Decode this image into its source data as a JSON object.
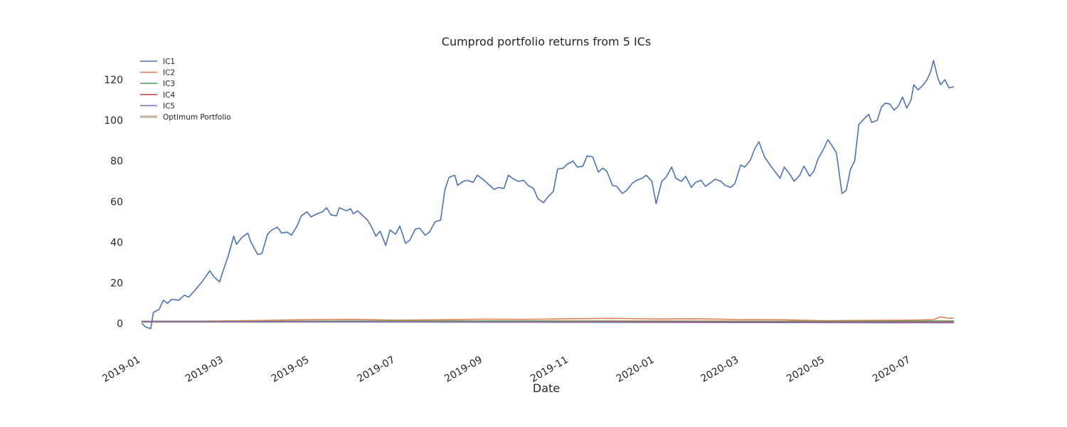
{
  "chart_data": {
    "type": "line",
    "title": "Cumprod portfolio returns from 5 ICs",
    "xlabel": "Date",
    "ylabel": "",
    "x_type": "date",
    "xlim": [
      "2018-12-28",
      "2020-08-03"
    ],
    "ylim": [
      -12,
      134
    ],
    "yticks": [
      0,
      20,
      40,
      60,
      80,
      100,
      120
    ],
    "xticks": [
      "2019-01",
      "2019-03",
      "2019-05",
      "2019-07",
      "2019-09",
      "2019-11",
      "2020-01",
      "2020-03",
      "2020-05",
      "2020-07"
    ],
    "grid": false,
    "legend_position": "top-left",
    "series": [
      {
        "name": "IC1",
        "color": "#4c72b0",
        "points": [
          [
            "2019-01-02",
            0.0
          ],
          [
            "2019-01-04",
            -1.5
          ],
          [
            "2019-01-08",
            -2.5
          ],
          [
            "2019-01-10",
            5.5
          ],
          [
            "2019-01-14",
            7.0
          ],
          [
            "2019-01-17",
            11.5
          ],
          [
            "2019-01-20",
            10.0
          ],
          [
            "2019-01-23",
            12.0
          ],
          [
            "2019-01-28",
            11.5
          ],
          [
            "2019-02-01",
            14.0
          ],
          [
            "2019-02-04",
            13.0
          ],
          [
            "2019-02-08",
            16.0
          ],
          [
            "2019-02-14",
            21.0
          ],
          [
            "2019-02-19",
            26.0
          ],
          [
            "2019-02-22",
            23.0
          ],
          [
            "2019-02-26",
            20.5
          ],
          [
            "2019-02-28",
            25.0
          ],
          [
            "2019-03-04",
            33.0
          ],
          [
            "2019-03-08",
            43.0
          ],
          [
            "2019-03-10",
            39.0
          ],
          [
            "2019-03-14",
            42.5
          ],
          [
            "2019-03-18",
            44.5
          ],
          [
            "2019-03-20",
            40.5
          ],
          [
            "2019-03-25",
            34.0
          ],
          [
            "2019-03-28",
            34.5
          ],
          [
            "2019-04-01",
            44.0
          ],
          [
            "2019-04-04",
            46.0
          ],
          [
            "2019-04-08",
            47.5
          ],
          [
            "2019-04-11",
            44.5
          ],
          [
            "2019-04-15",
            45.0
          ],
          [
            "2019-04-18",
            43.5
          ],
          [
            "2019-04-22",
            48.0
          ],
          [
            "2019-04-25",
            53.0
          ],
          [
            "2019-04-29",
            55.0
          ],
          [
            "2019-05-02",
            52.5
          ],
          [
            "2019-05-06",
            54.0
          ],
          [
            "2019-05-10",
            55.0
          ],
          [
            "2019-05-13",
            57.0
          ],
          [
            "2019-05-16",
            53.5
          ],
          [
            "2019-05-20",
            53.0
          ],
          [
            "2019-05-22",
            57.0
          ],
          [
            "2019-05-27",
            55.5
          ],
          [
            "2019-05-30",
            56.5
          ],
          [
            "2019-06-01",
            54.0
          ],
          [
            "2019-06-04",
            55.5
          ],
          [
            "2019-06-07",
            53.5
          ],
          [
            "2019-06-11",
            51.0
          ],
          [
            "2019-06-14",
            47.5
          ],
          [
            "2019-06-17",
            43.0
          ],
          [
            "2019-06-20",
            45.5
          ],
          [
            "2019-06-24",
            38.5
          ],
          [
            "2019-06-27",
            46.0
          ],
          [
            "2019-07-01",
            44.0
          ],
          [
            "2019-07-04",
            48.0
          ],
          [
            "2019-07-08",
            39.5
          ],
          [
            "2019-07-11",
            41.0
          ],
          [
            "2019-07-15",
            46.5
          ],
          [
            "2019-07-18",
            47.0
          ],
          [
            "2019-07-22",
            43.5
          ],
          [
            "2019-07-25",
            45.0
          ],
          [
            "2019-07-29",
            50.0
          ],
          [
            "2019-08-02",
            51.0
          ],
          [
            "2019-08-05",
            66.0
          ],
          [
            "2019-08-08",
            72.0
          ],
          [
            "2019-08-12",
            73.0
          ],
          [
            "2019-08-14",
            68.0
          ],
          [
            "2019-08-18",
            70.0
          ],
          [
            "2019-08-21",
            70.5
          ],
          [
            "2019-08-25",
            69.5
          ],
          [
            "2019-08-28",
            73.0
          ],
          [
            "2019-09-01",
            71.0
          ],
          [
            "2019-09-05",
            68.5
          ],
          [
            "2019-09-09",
            66.0
          ],
          [
            "2019-09-12",
            67.0
          ],
          [
            "2019-09-16",
            66.5
          ],
          [
            "2019-09-19",
            73.0
          ],
          [
            "2019-09-23",
            71.0
          ],
          [
            "2019-09-26",
            70.0
          ],
          [
            "2019-09-30",
            70.5
          ],
          [
            "2019-10-03",
            68.0
          ],
          [
            "2019-10-07",
            66.5
          ],
          [
            "2019-10-10",
            61.5
          ],
          [
            "2019-10-14",
            59.5
          ],
          [
            "2019-10-18",
            63.0
          ],
          [
            "2019-10-21",
            65.0
          ],
          [
            "2019-10-24",
            76.0
          ],
          [
            "2019-10-28",
            76.5
          ],
          [
            "2019-10-31",
            78.5
          ],
          [
            "2019-11-04",
            80.0
          ],
          [
            "2019-11-07",
            77.0
          ],
          [
            "2019-11-11",
            77.5
          ],
          [
            "2019-11-14",
            82.5
          ],
          [
            "2019-11-18",
            82.0
          ],
          [
            "2019-11-22",
            74.5
          ],
          [
            "2019-11-25",
            76.5
          ],
          [
            "2019-11-28",
            75.0
          ],
          [
            "2019-12-02",
            68.0
          ],
          [
            "2019-12-05",
            67.5
          ],
          [
            "2019-12-09",
            64.0
          ],
          [
            "2019-12-12",
            65.5
          ],
          [
            "2019-12-16",
            69.0
          ],
          [
            "2019-12-19",
            70.5
          ],
          [
            "2019-12-23",
            71.5
          ],
          [
            "2019-12-26",
            73.0
          ],
          [
            "2019-12-30",
            70.0
          ],
          [
            "2020-01-02",
            59.0
          ],
          [
            "2020-01-06",
            70.0
          ],
          [
            "2020-01-09",
            72.0
          ],
          [
            "2020-01-13",
            77.0
          ],
          [
            "2020-01-16",
            71.5
          ],
          [
            "2020-01-20",
            70.0
          ],
          [
            "2020-01-23",
            72.5
          ],
          [
            "2020-01-27",
            67.0
          ],
          [
            "2020-01-30",
            69.5
          ],
          [
            "2020-02-03",
            70.5
          ],
          [
            "2020-02-06",
            67.5
          ],
          [
            "2020-02-10",
            69.5
          ],
          [
            "2020-02-13",
            71.0
          ],
          [
            "2020-02-17",
            70.0
          ],
          [
            "2020-02-20",
            68.0
          ],
          [
            "2020-02-24",
            67.0
          ],
          [
            "2020-02-27",
            69.0
          ],
          [
            "2020-03-02",
            78.0
          ],
          [
            "2020-03-05",
            77.0
          ],
          [
            "2020-03-09",
            80.5
          ],
          [
            "2020-03-12",
            86.0
          ],
          [
            "2020-03-15",
            89.5
          ],
          [
            "2020-03-19",
            82.0
          ],
          [
            "2020-03-24",
            77.0
          ],
          [
            "2020-03-30",
            71.5
          ],
          [
            "2020-04-02",
            77.0
          ],
          [
            "2020-04-06",
            73.5
          ],
          [
            "2020-04-09",
            70.0
          ],
          [
            "2020-04-13",
            73.0
          ],
          [
            "2020-04-16",
            77.5
          ],
          [
            "2020-04-20",
            72.5
          ],
          [
            "2020-04-23",
            75.0
          ],
          [
            "2020-04-26",
            81.0
          ],
          [
            "2020-04-30",
            86.0
          ],
          [
            "2020-05-03",
            90.5
          ],
          [
            "2020-05-06",
            87.5
          ],
          [
            "2020-05-09",
            84.0
          ],
          [
            "2020-05-13",
            64.0
          ],
          [
            "2020-05-16",
            65.5
          ],
          [
            "2020-05-19",
            76.0
          ],
          [
            "2020-05-22",
            80.0
          ],
          [
            "2020-05-25",
            98.0
          ],
          [
            "2020-05-29",
            101.0
          ],
          [
            "2020-06-01",
            103.0
          ],
          [
            "2020-06-03",
            99.0
          ],
          [
            "2020-06-07",
            100.0
          ],
          [
            "2020-06-10",
            106.5
          ],
          [
            "2020-06-13",
            108.5
          ],
          [
            "2020-06-16",
            108.0
          ],
          [
            "2020-06-19",
            105.0
          ],
          [
            "2020-06-22",
            107.0
          ],
          [
            "2020-06-25",
            111.5
          ],
          [
            "2020-06-28",
            106.0
          ],
          [
            "2020-07-01",
            110.0
          ],
          [
            "2020-07-03",
            117.5
          ],
          [
            "2020-07-06",
            115.0
          ],
          [
            "2020-07-09",
            117.0
          ],
          [
            "2020-07-12",
            119.5
          ],
          [
            "2020-07-15",
            124.0
          ],
          [
            "2020-07-17",
            129.5
          ],
          [
            "2020-07-20",
            121.0
          ],
          [
            "2020-07-22",
            117.5
          ],
          [
            "2020-07-25",
            120.0
          ],
          [
            "2020-07-28",
            116.0
          ],
          [
            "2020-07-31",
            116.5
          ]
        ]
      },
      {
        "name": "IC2",
        "color": "#dd8452",
        "points": [
          [
            "2019-01-02",
            1.0
          ],
          [
            "2019-02-01",
            1.0
          ],
          [
            "2019-03-01",
            1.3
          ],
          [
            "2019-04-01",
            1.6
          ],
          [
            "2019-05-01",
            2.0
          ],
          [
            "2019-06-01",
            2.1
          ],
          [
            "2019-07-01",
            1.7
          ],
          [
            "2019-08-01",
            1.9
          ],
          [
            "2019-09-01",
            2.2
          ],
          [
            "2019-10-01",
            2.1
          ],
          [
            "2019-11-01",
            2.4
          ],
          [
            "2019-12-01",
            2.6
          ],
          [
            "2020-01-01",
            2.3
          ],
          [
            "2020-02-01",
            2.4
          ],
          [
            "2020-03-01",
            2.0
          ],
          [
            "2020-04-01",
            1.9
          ],
          [
            "2020-05-01",
            1.4
          ],
          [
            "2020-06-01",
            1.6
          ],
          [
            "2020-07-01",
            1.7
          ],
          [
            "2020-07-17",
            2.0
          ],
          [
            "2020-07-22",
            3.3
          ],
          [
            "2020-07-25",
            3.0
          ],
          [
            "2020-07-28",
            2.6
          ],
          [
            "2020-07-31",
            2.8
          ]
        ]
      },
      {
        "name": "IC3",
        "color": "#55a868",
        "points": [
          [
            "2019-01-02",
            1.0
          ],
          [
            "2019-04-01",
            1.1
          ],
          [
            "2019-07-01",
            1.2
          ],
          [
            "2019-10-01",
            1.3
          ],
          [
            "2020-01-01",
            1.2
          ],
          [
            "2020-04-01",
            1.1
          ],
          [
            "2020-07-31",
            1.3
          ]
        ]
      },
      {
        "name": "IC4",
        "color": "#c44e52",
        "points": [
          [
            "2019-01-02",
            1.0
          ],
          [
            "2019-04-01",
            1.0
          ],
          [
            "2019-07-01",
            0.9
          ],
          [
            "2019-10-01",
            0.9
          ],
          [
            "2020-01-01",
            1.0
          ],
          [
            "2020-04-01",
            0.8
          ],
          [
            "2020-07-31",
            0.8
          ]
        ]
      },
      {
        "name": "IC5",
        "color": "#8172b3",
        "points": [
          [
            "2019-01-02",
            1.0
          ],
          [
            "2019-04-01",
            0.9
          ],
          [
            "2019-07-01",
            0.8
          ],
          [
            "2019-10-01",
            0.7
          ],
          [
            "2020-01-01",
            0.6
          ],
          [
            "2020-04-01",
            0.5
          ],
          [
            "2020-07-31",
            0.4
          ]
        ]
      },
      {
        "name": "Optimum Portfolio",
        "color": "#c8bba8",
        "points": [
          [
            "2019-01-02",
            1.0
          ],
          [
            "2019-04-01",
            1.0
          ],
          [
            "2019-07-01",
            1.1
          ],
          [
            "2019-10-01",
            1.0
          ],
          [
            "2020-01-01",
            1.0
          ],
          [
            "2020-04-01",
            0.9
          ],
          [
            "2020-07-31",
            1.0
          ]
        ]
      }
    ]
  }
}
